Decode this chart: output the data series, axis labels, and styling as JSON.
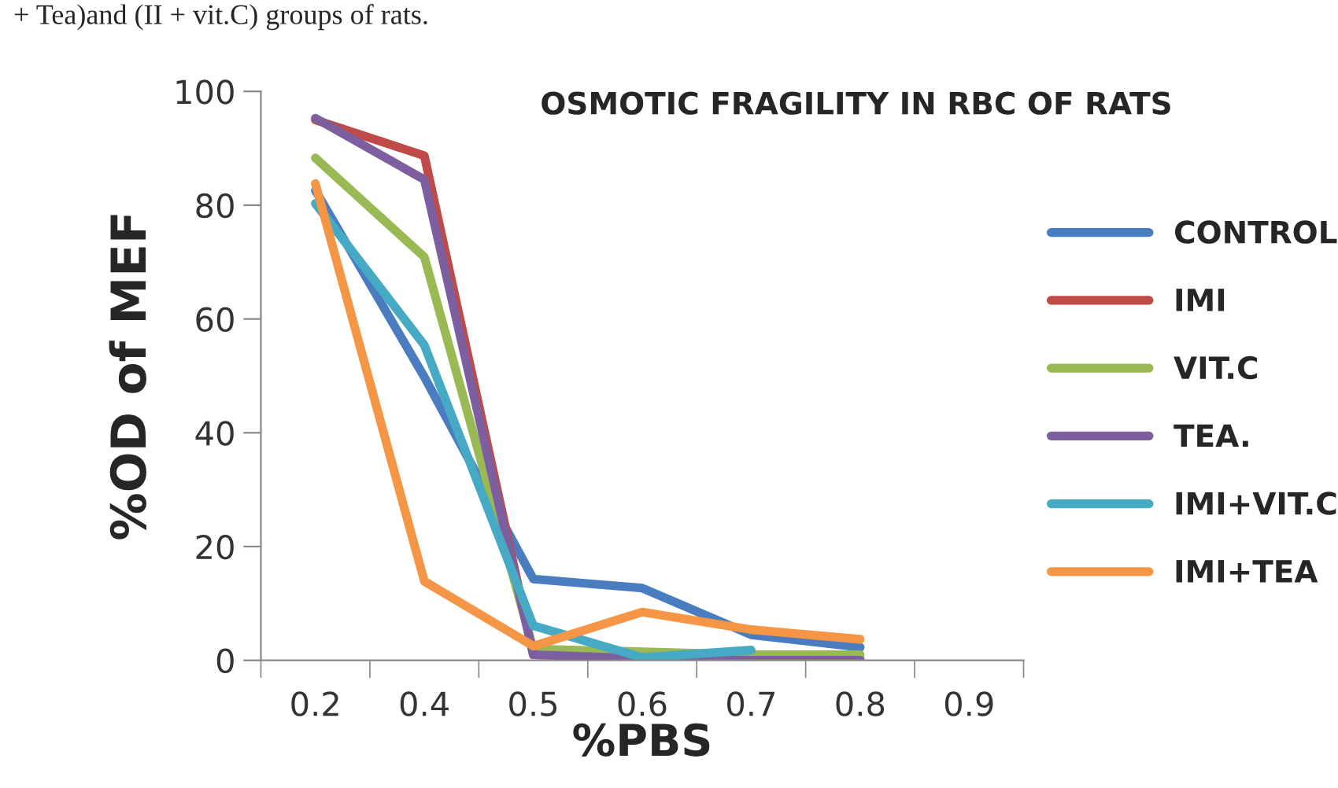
{
  "chart_data": {
    "type": "line",
    "title": "OSMOTIC FRAGILITY IN RBC OF RATS",
    "xlabel": "%PBS",
    "ylabel": "%OD of MEF",
    "annotations": [
      "+ Tea)and (II + vit.C) groups of rats."
    ],
    "categories": [
      "0.2",
      "0.4",
      "0.5",
      "0.6",
      "0.7",
      "0.8",
      "0.9"
    ],
    "ylim": [
      0,
      100
    ],
    "yticks": [
      0,
      20,
      40,
      60,
      80,
      100
    ],
    "grid": false,
    "legend": "right",
    "marker": "none",
    "line_style": "solid",
    "series": [
      {
        "name": "CONTROL",
        "color": "#4a7dbf",
        "values": [
          82.6,
          49.8,
          14.3,
          12.7,
          4.5,
          2.3,
          null
        ]
      },
      {
        "name": "IMI",
        "color": "#be4b48",
        "values": [
          95,
          88.7,
          1,
          0.5,
          0.3,
          0.3,
          null
        ]
      },
      {
        "name": "VIT.C",
        "color": "#98b954",
        "values": [
          88.3,
          70.9,
          2,
          1.5,
          1,
          1,
          null
        ]
      },
      {
        "name": "TEA.",
        "color": "#7d5fa0",
        "values": [
          95.3,
          84.5,
          1,
          0.3,
          0,
          0,
          null
        ]
      },
      {
        "name": "IMI+VIT.C",
        "color": "#46aac5",
        "values": [
          80.3,
          55.4,
          6.1,
          0.5,
          1.8,
          null,
          null
        ]
      },
      {
        "name": "IMI+TEA",
        "color": "#f59646",
        "values": [
          83.8,
          13.9,
          2.5,
          8.5,
          5.4,
          3.7,
          null
        ]
      }
    ]
  }
}
